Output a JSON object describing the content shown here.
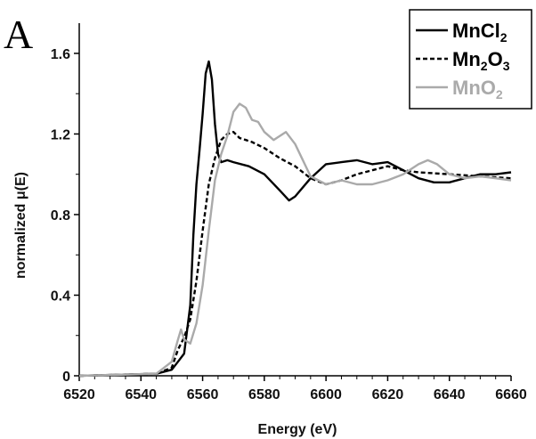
{
  "panel_label": "A",
  "chart_data": {
    "type": "line",
    "xlabel": "Energy (eV)",
    "ylabel": "normalized μ(E)",
    "xlim": [
      6520,
      6660
    ],
    "ylim": [
      0,
      1.75
    ],
    "x_ticks": [
      6520,
      6540,
      6560,
      6580,
      6600,
      6620,
      6640,
      6660
    ],
    "y_ticks": [
      0,
      0.4,
      0.8,
      1.2,
      1.6
    ],
    "y_tick_labels": [
      "0",
      "0.4",
      "0.8",
      "1.2",
      "1.6"
    ],
    "grid": false,
    "legend_position": "top-right",
    "series": [
      {
        "name": "MnCl2",
        "legend_main": "MnCl",
        "legend_sub": "2",
        "color": "#000000",
        "style": "solid",
        "x": [
          6520,
          6545,
          6550,
          6552,
          6554,
          6556,
          6557,
          6558,
          6559,
          6560,
          6561,
          6562,
          6563,
          6564,
          6565,
          6566,
          6568,
          6570,
          6575,
          6580,
          6585,
          6588,
          6590,
          6595,
          6600,
          6605,
          6610,
          6615,
          6620,
          6625,
          6630,
          6635,
          6640,
          6645,
          6650,
          6655,
          6660
        ],
        "y": [
          0,
          0.01,
          0.03,
          0.07,
          0.11,
          0.35,
          0.7,
          0.95,
          1.12,
          1.3,
          1.5,
          1.56,
          1.47,
          1.25,
          1.1,
          1.06,
          1.07,
          1.06,
          1.04,
          1.0,
          0.92,
          0.87,
          0.89,
          0.98,
          1.05,
          1.06,
          1.07,
          1.05,
          1.06,
          1.02,
          0.98,
          0.96,
          0.96,
          0.98,
          1.0,
          1.0,
          1.01
        ]
      },
      {
        "name": "Mn2O3",
        "legend_main": "Mn",
        "legend_sub": "2",
        "legend_main2": "O",
        "legend_sub2": "3",
        "color": "#000000",
        "style": "dashed",
        "x": [
          6520,
          6545,
          6550,
          6552,
          6554,
          6556,
          6558,
          6560,
          6562,
          6564,
          6566,
          6568,
          6570,
          6572,
          6574,
          6576,
          6580,
          6585,
          6590,
          6595,
          6600,
          6605,
          6610,
          6615,
          6620,
          6625,
          6630,
          6640,
          6650,
          6660
        ],
        "y": [
          0,
          0.01,
          0.04,
          0.13,
          0.19,
          0.28,
          0.47,
          0.72,
          0.95,
          1.08,
          1.17,
          1.2,
          1.21,
          1.18,
          1.17,
          1.16,
          1.13,
          1.08,
          1.04,
          0.98,
          0.95,
          0.97,
          1.0,
          1.02,
          1.04,
          1.02,
          1.01,
          1.0,
          0.99,
          0.98
        ]
      },
      {
        "name": "MnO2",
        "legend_main": "MnO",
        "legend_sub": "2",
        "color": "#aaaaaa",
        "style": "solid",
        "x": [
          6520,
          6545,
          6550,
          6552,
          6553,
          6554,
          6556,
          6558,
          6560,
          6562,
          6564,
          6566,
          6568,
          6570,
          6572,
          6574,
          6576,
          6578,
          6580,
          6583,
          6587,
          6590,
          6595,
          6600,
          6605,
          6610,
          6615,
          6620,
          6625,
          6630,
          6633,
          6636,
          6640,
          6645,
          6650,
          6655,
          6660
        ],
        "y": [
          0,
          0.01,
          0.07,
          0.18,
          0.23,
          0.18,
          0.16,
          0.26,
          0.45,
          0.72,
          0.97,
          1.1,
          1.19,
          1.31,
          1.35,
          1.33,
          1.27,
          1.26,
          1.21,
          1.17,
          1.21,
          1.15,
          0.99,
          0.95,
          0.97,
          0.95,
          0.95,
          0.97,
          1.0,
          1.05,
          1.07,
          1.05,
          1.0,
          0.98,
          0.99,
          0.98,
          0.97
        ]
      }
    ]
  }
}
